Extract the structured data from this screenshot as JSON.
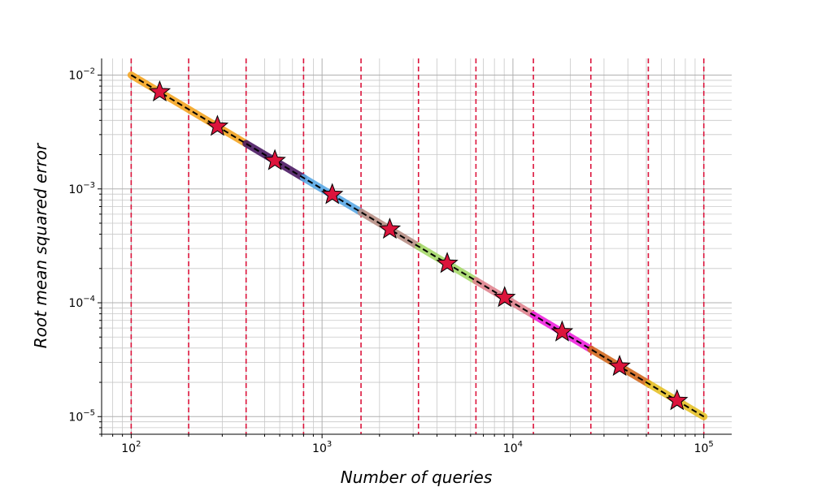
{
  "chart_data": {
    "type": "line",
    "title": "",
    "xlabel": "Number of queries",
    "ylabel": "Root mean squared error",
    "xscale": "log",
    "yscale": "log",
    "xlim": [
      70,
      140000
    ],
    "ylim": [
      7e-06,
      0.014
    ],
    "grid": true,
    "grid_minor": true,
    "legend": "none",
    "x_ticks": [
      {
        "value": 100,
        "base": "10",
        "exp": "2"
      },
      {
        "value": 1000,
        "base": "10",
        "exp": "3"
      },
      {
        "value": 10000,
        "base": "10",
        "exp": "4"
      },
      {
        "value": 100000,
        "base": "10",
        "exp": "5"
      }
    ],
    "y_ticks": [
      {
        "value": 0.01,
        "base": "10",
        "exp": "−2"
      },
      {
        "value": 0.001,
        "base": "10",
        "exp": "−3"
      },
      {
        "value": 0.0001,
        "base": "10",
        "exp": "−4"
      },
      {
        "value": 1e-05,
        "base": "10",
        "exp": "−5"
      }
    ],
    "reference_line": {
      "x": [
        100,
        100000
      ],
      "y": [
        0.01,
        1e-05
      ],
      "color": "#000000",
      "style": "dashed"
    },
    "vertical_lines": {
      "x": [
        100,
        200,
        400,
        800,
        1600,
        3200,
        6400,
        12800,
        25600,
        51200,
        100000
      ],
      "color": "#dc143c",
      "style": "dashed"
    },
    "segments": [
      {
        "x": [
          100,
          400
        ],
        "color": "#f5a623"
      },
      {
        "x": [
          400,
          800
        ],
        "color": "#4b1a63"
      },
      {
        "x": [
          800,
          1600
        ],
        "color": "#5aa9e6"
      },
      {
        "x": [
          1600,
          3200
        ],
        "color": "#b88f85"
      },
      {
        "x": [
          3200,
          6400
        ],
        "color": "#a6d96a"
      },
      {
        "x": [
          6400,
          12800
        ],
        "color": "#e08590"
      },
      {
        "x": [
          12800,
          25600
        ],
        "color": "#ee22dd"
      },
      {
        "x": [
          25600,
          51200
        ],
        "color": "#d2691e"
      },
      {
        "x": [
          51200,
          100000
        ],
        "color": "#e6c229"
      }
    ],
    "stars": {
      "x": [
        141,
        283,
        566,
        1131,
        2263,
        4525,
        9051,
        18102,
        36204,
        72408
      ],
      "y": [
        0.0071,
        0.00354,
        0.00177,
        0.00089,
        0.000442,
        0.000221,
        0.000111,
        5.53e-05,
        2.76e-05,
        1.38e-05
      ],
      "color": "#dc143c",
      "edge_color": "#000000"
    }
  }
}
